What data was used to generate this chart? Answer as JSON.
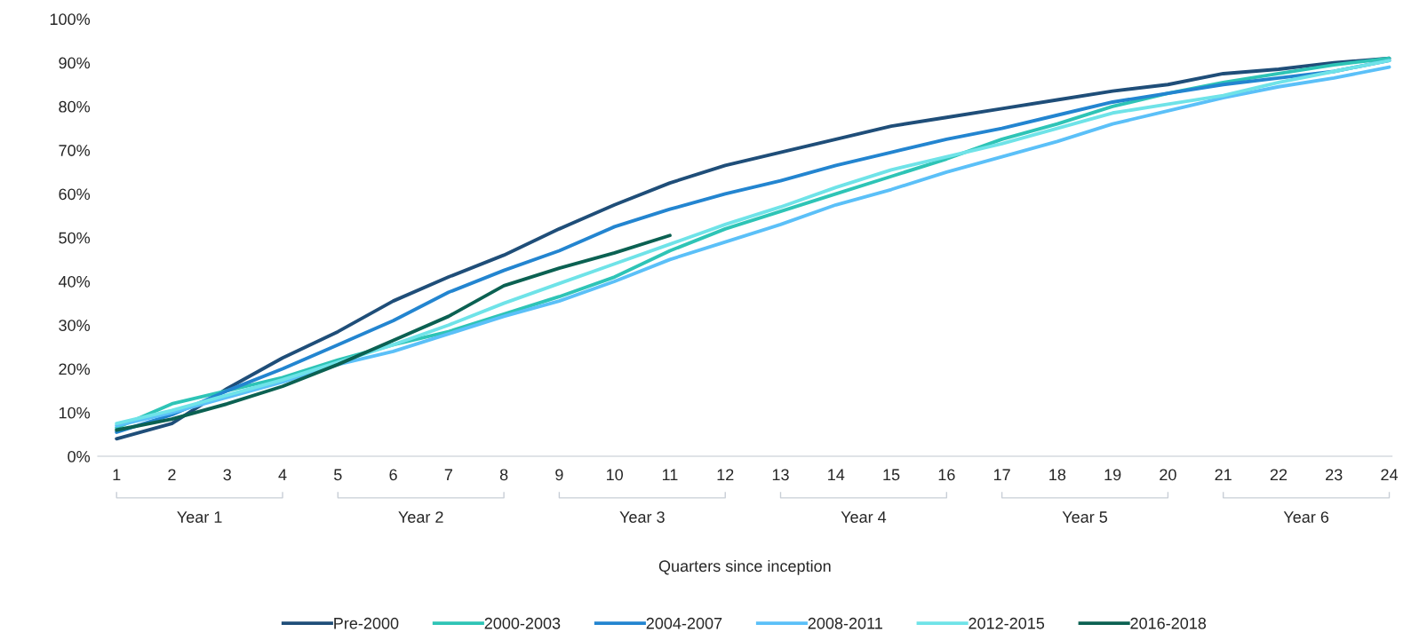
{
  "chart_data": {
    "type": "line",
    "xlabel": "Quarters since inception",
    "categories": [
      "1",
      "2",
      "3",
      "4",
      "5",
      "6",
      "7",
      "8",
      "9",
      "10",
      "11",
      "12",
      "13",
      "14",
      "15",
      "16",
      "17",
      "18",
      "19",
      "20",
      "21",
      "22",
      "23",
      "24"
    ],
    "ylim": [
      0,
      100
    ],
    "yticks": [
      {
        "value": 0,
        "label": "0%"
      },
      {
        "value": 10,
        "label": "10%"
      },
      {
        "value": 20,
        "label": "20%"
      },
      {
        "value": 30,
        "label": "30%"
      },
      {
        "value": 40,
        "label": "40%"
      },
      {
        "value": 50,
        "label": "50%"
      },
      {
        "value": 60,
        "label": "60%"
      },
      {
        "value": 70,
        "label": "70%"
      },
      {
        "value": 80,
        "label": "80%"
      },
      {
        "value": 90,
        "label": "90%"
      },
      {
        "value": 100,
        "label": "100%"
      }
    ],
    "grid": false,
    "legend": "bottom",
    "marker": "none",
    "line_style": "solid",
    "annotations": [
      "Year 1",
      "Year 2",
      "Year 3",
      "Year 4",
      "Year 5",
      "Year 6"
    ],
    "series": [
      {
        "name": "Pre-2000",
        "color": "#1f4e79",
        "values": [
          4,
          7.5,
          15.5,
          22.5,
          28.5,
          35.5,
          41,
          46,
          52,
          57.5,
          62.5,
          66.5,
          69.5,
          72.5,
          75.5,
          77.5,
          79.5,
          81.5,
          83.5,
          85,
          87.5,
          88.5,
          90,
          91
        ]
      },
      {
        "name": "2000-2003",
        "color": "#2ec4b6",
        "values": [
          6.5,
          12,
          15,
          18,
          22,
          25.5,
          28.5,
          32.5,
          36.5,
          41,
          47,
          52,
          56,
          60,
          64,
          68,
          72.5,
          76,
          80,
          83,
          85.5,
          87.5,
          89.5,
          91
        ]
      },
      {
        "name": "2004-2007",
        "color": "#2385d0",
        "values": [
          5.5,
          9.5,
          15,
          20,
          25.5,
          31,
          37.5,
          42.5,
          47,
          52.5,
          56.5,
          60,
          63,
          66.5,
          69.5,
          72.5,
          75,
          78,
          81,
          83,
          85,
          86.5,
          88,
          90.5
        ]
      },
      {
        "name": "2008-2011",
        "color": "#5bc0f8",
        "values": [
          7,
          10,
          13.5,
          17,
          21,
          24,
          28,
          32,
          35.5,
          40,
          45,
          49,
          53,
          57.5,
          61,
          65,
          68.5,
          72,
          76,
          79,
          82,
          84.5,
          86.5,
          89
        ]
      },
      {
        "name": "2012-2015",
        "color": "#6fe3e8",
        "values": [
          7.5,
          10.5,
          14,
          17.5,
          21.5,
          25.5,
          30,
          35,
          39.5,
          44,
          48.5,
          53,
          57,
          61.5,
          65.5,
          68.5,
          71.5,
          75,
          78.5,
          80.5,
          82.5,
          85.5,
          88,
          90.5
        ]
      },
      {
        "name": "2016-2018",
        "color": "#0b6152",
        "values": [
          6,
          8.5,
          12,
          16,
          21,
          26.5,
          32,
          39,
          43,
          46.5,
          50.5,
          null,
          null,
          null,
          null,
          null,
          null,
          null,
          null,
          null,
          null,
          null,
          null,
          null
        ]
      }
    ]
  }
}
